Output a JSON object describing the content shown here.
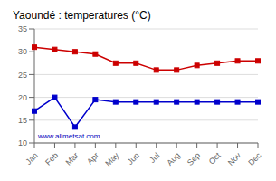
{
  "chart_data": {
    "type": "line",
    "title": "Yaoundé : temperatures (°C)",
    "categories": [
      "Jan",
      "Feb",
      "Mar",
      "Apr",
      "May",
      "Jun",
      "Jul",
      "Aug",
      "Sep",
      "Oct",
      "Nov",
      "Dec"
    ],
    "series": [
      {
        "color": "#cc0000",
        "marker": "square",
        "line_style": "solid",
        "values": [
          31.0,
          30.5,
          30.0,
          29.5,
          27.5,
          27.5,
          26.0,
          26.0,
          27.0,
          27.5,
          28.0,
          28.0
        ]
      },
      {
        "color": "#0000cc",
        "marker": "square",
        "line_style": "solid",
        "values": [
          17.0,
          20.0,
          13.5,
          19.5,
          19.0,
          19.0,
          19.0,
          19.0,
          19.0,
          19.0,
          19.0,
          19.0
        ]
      }
    ],
    "ylim": [
      10,
      35
    ],
    "yticks": [
      10,
      15,
      20,
      25,
      30,
      35
    ],
    "grid": true,
    "annotations": [
      {
        "text": "www.allmetsat.com",
        "color": "#0000bb"
      }
    ]
  }
}
